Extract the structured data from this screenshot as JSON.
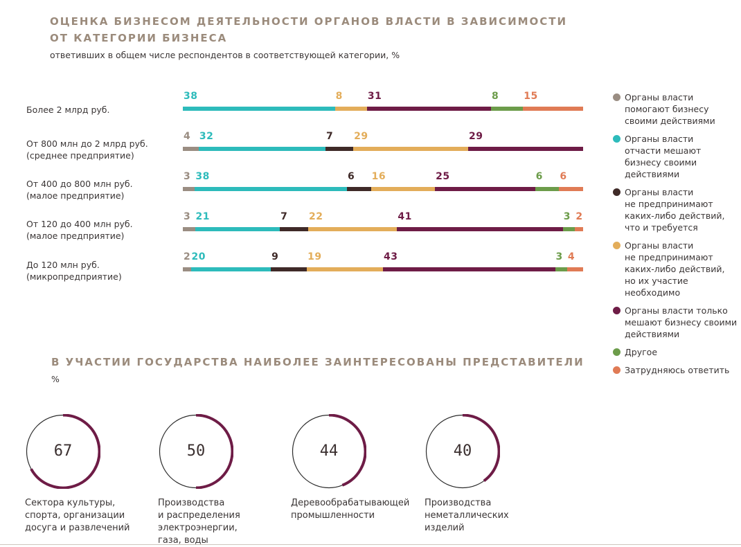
{
  "heading1": {
    "line1": "ОЦЕНКА БИЗНЕСОМ ДЕЯТЕЛЬНОСТИ ОРГАНОВ ВЛАСТИ В ЗАВИСИМОСТИ",
    "line2": "ОТ КАТЕГОРИИ БИЗНЕСА",
    "subtitle": "ответивших в общем числе респондентов в соответствующей категории, %"
  },
  "heading2": {
    "title": "В УЧАСТИИ ГОСУДАРСТВА НАИБОЛЕЕ ЗАИНТЕРЕСОВАНЫ ПРЕДСТАВИТЕЛИ",
    "subtitle": "%"
  },
  "chart_data": [
    {
      "type": "bar",
      "orientation": "horizontal",
      "stacked": true,
      "categories": [
        "Более 2 млрд руб.",
        "От 800 млн до 2 млрд руб.\n(среднее предприятие)",
        "От 400 до 800 млн руб.\n(малое предприятие)",
        "От 120 до 400 млн руб.\n(малое предприятие)",
        "До 120 млн руб.\n(микропредприятие)"
      ],
      "series": [
        {
          "name": "Органы власти помогают бизнесу своими действиями",
          "color": "#9a8d82",
          "values": [
            0,
            4,
            3,
            3,
            2
          ]
        },
        {
          "name": "Органы власти отчасти мешают бизнесу своими действиями",
          "color": "#2dbbbb",
          "values": [
            38,
            32,
            38,
            21,
            20
          ]
        },
        {
          "name": "Органы власти не предпринимают каких-либо действий, что и требуется",
          "color": "#3f2a28",
          "values": [
            0,
            7,
            6,
            7,
            9
          ]
        },
        {
          "name": "Органы власти не предпринимают каких-либо действий, но их участие необходимо",
          "color": "#e3ad5a",
          "values": [
            8,
            29,
            16,
            22,
            19
          ]
        },
        {
          "name": "Органы власти только мешают бизнесу своими действиями",
          "color": "#6e1c46",
          "values": [
            31,
            29,
            25,
            41,
            43
          ]
        },
        {
          "name": "Другое",
          "color": "#6c9c4a",
          "values": [
            8,
            0,
            6,
            3,
            3
          ]
        },
        {
          "name": "Затрудняюсь ответить",
          "color": "#e07b55",
          "values": [
            15,
            0,
            6,
            2,
            4
          ]
        }
      ],
      "legend_position": "right"
    },
    {
      "type": "pie",
      "style": "donut-gauge",
      "color": "#6e1c46",
      "items": [
        {
          "value": 67,
          "label": "Сектора культуры,\nспорта, организации\nдосуга и развлечений"
        },
        {
          "value": 50,
          "label": "Производства\nи распределения\nэлектроэнергии,\nгаза, воды"
        },
        {
          "value": 44,
          "label": "Деревообрабатывающей\nпромышленности"
        },
        {
          "value": 40,
          "label": "Производства\nнеметаллических\nизделий"
        }
      ]
    }
  ],
  "legend": [
    {
      "text": "Органы власти\nпомогают бизнесу\nсвоими действиями",
      "color": "#9a8d82"
    },
    {
      "text": "Органы власти\nотчасти мешают\nбизнесу своими\nдействиями",
      "color": "#2dbbbb"
    },
    {
      "text": "Органы власти\nне предпринимают\nкаких-либо действий,\nчто и требуется",
      "color": "#3f2a28"
    },
    {
      "text": "Органы власти\nне предпринимают\nкаких-либо действий,\nно их участие необходимо",
      "color": "#e3ad5a"
    },
    {
      "text": "Органы власти только\nмешают бизнесу своими\nдействиями",
      "color": "#6e1c46"
    },
    {
      "text": "Другое",
      "color": "#6c9c4a"
    },
    {
      "text": "Затрудняюсь ответить",
      "color": "#e07b55"
    }
  ]
}
